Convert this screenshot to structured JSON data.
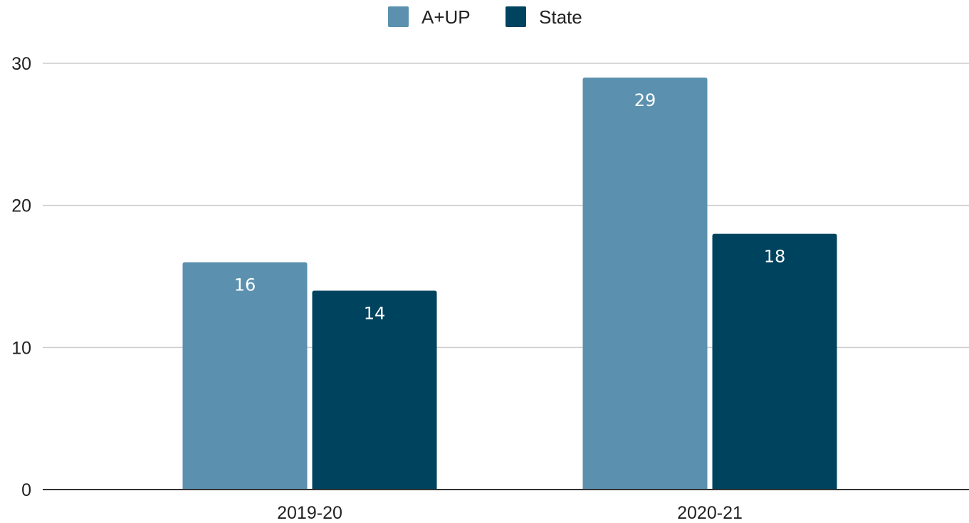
{
  "chart_data": {
    "type": "bar",
    "categories": [
      "2019-20",
      "2020-21"
    ],
    "series": [
      {
        "name": "A+UP",
        "color": "#5b91af",
        "values": [
          16,
          29
        ]
      },
      {
        "name": "State",
        "color": "#00435f",
        "values": [
          14,
          18
        ]
      }
    ],
    "y_ticks": [
      "0",
      "10",
      "20",
      "30"
    ],
    "ylim": [
      0,
      30
    ],
    "grid": true,
    "legend_position": "top-center",
    "data_labels": true
  }
}
